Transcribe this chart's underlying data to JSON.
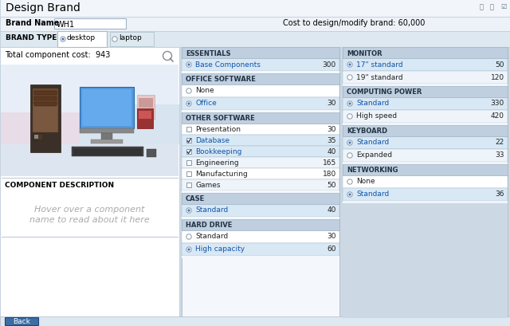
{
  "title": "Design Brand",
  "brand_name_label": "Brand Name",
  "brand_name_value": "WH1",
  "cost_label": "Cost to design/modify brand: 60,000",
  "brand_type_label": "BRAND TYPE",
  "tab_desktop": "desktop",
  "tab_laptop": "laptop",
  "total_cost_label": "Total component cost:  943",
  "component_desc_label": "COMPONENT DESCRIPTION",
  "hover_text1": "Hover over a component",
  "hover_text2": "name to read about it here",
  "bg_main": "#cdd8e3",
  "bg_white": "#ffffff",
  "bg_header": "#f0f4f8",
  "bg_left_panel": "#ffffff",
  "section_hdr_bg": "#bfcfdf",
  "row_selected_bg": "#d8e8f4",
  "row_white_bg": "#ffffff",
  "row_light_bg": "#eef4fa",
  "border_color": "#a0b4c4",
  "back_btn_bg": "#3a6ea5",
  "back_btn_text": "Back",
  "tab_bar_bg": "#dde8f0",
  "brand_row_bg": "#eaf0f8",
  "left_panel_bottom_bg": "#e8eef5",
  "left_sections": [
    {
      "header": "ESSENTIALS",
      "items": [
        {
          "label": "Base Components",
          "value": "300",
          "selected": true,
          "type": "radio"
        }
      ]
    },
    {
      "header": "OFFICE SOFTWARE",
      "items": [
        {
          "label": "None",
          "value": "",
          "selected": false,
          "type": "radio"
        },
        {
          "label": "Office",
          "value": "30",
          "selected": true,
          "type": "radio"
        }
      ]
    },
    {
      "header": "OTHER SOFTWARE",
      "items": [
        {
          "label": "Presentation",
          "value": "30",
          "selected": false,
          "type": "check"
        },
        {
          "label": "Database",
          "value": "35",
          "selected": true,
          "type": "check"
        },
        {
          "label": "Bookkeeping",
          "value": "40",
          "selected": true,
          "type": "check"
        },
        {
          "label": "Engineering",
          "value": "165",
          "selected": false,
          "type": "check"
        },
        {
          "label": "Manufacturing",
          "value": "180",
          "selected": false,
          "type": "check"
        },
        {
          "label": "Games",
          "value": "50",
          "selected": false,
          "type": "check"
        }
      ]
    },
    {
      "header": "CASE",
      "items": [
        {
          "label": "Standard",
          "value": "40",
          "selected": true,
          "type": "radio"
        }
      ]
    },
    {
      "header": "HARD DRIVE",
      "items": [
        {
          "label": "Standard",
          "value": "30",
          "selected": false,
          "type": "radio"
        },
        {
          "label": "High capacity",
          "value": "60",
          "selected": true,
          "type": "radio"
        }
      ]
    }
  ],
  "right_sections": [
    {
      "header": "MONITOR",
      "items": [
        {
          "label": "17\" standard",
          "value": "50",
          "selected": true,
          "type": "radio"
        },
        {
          "label": "19\" standard",
          "value": "120",
          "selected": false,
          "type": "radio"
        }
      ]
    },
    {
      "header": "COMPUTING POWER",
      "items": [
        {
          "label": "Standard",
          "value": "330",
          "selected": true,
          "type": "radio"
        },
        {
          "label": "High speed",
          "value": "420",
          "selected": false,
          "type": "radio"
        }
      ]
    },
    {
      "header": "KEYBOARD",
      "items": [
        {
          "label": "Standard",
          "value": "22",
          "selected": true,
          "type": "radio"
        },
        {
          "label": "Expanded",
          "value": "33",
          "selected": false,
          "type": "radio"
        }
      ]
    },
    {
      "header": "NETWORKING",
      "items": [
        {
          "label": "None",
          "value": "",
          "selected": false,
          "type": "radio"
        },
        {
          "label": "Standard",
          "value": "36",
          "selected": true,
          "type": "radio"
        }
      ]
    }
  ]
}
